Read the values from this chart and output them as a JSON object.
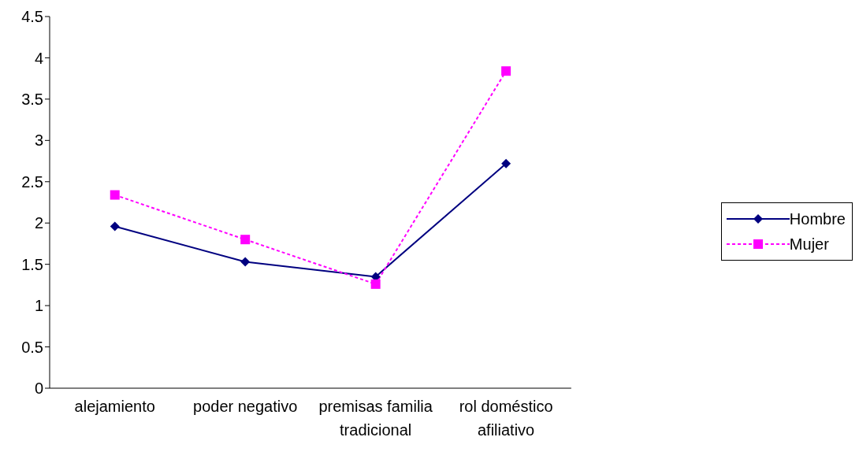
{
  "chart_data": {
    "type": "line",
    "categories": [
      "alejamiento",
      "poder negativo",
      "premisas familia tradicional",
      "rol doméstico afiliativo"
    ],
    "series": [
      {
        "name": "Hombre",
        "color": "#000080",
        "values": [
          1.96,
          1.53,
          1.35,
          2.72
        ],
        "marker": "diamond",
        "line_style": "solid"
      },
      {
        "name": "Mujer",
        "color": "#ff00ff",
        "values": [
          2.34,
          1.8,
          1.26,
          3.84
        ],
        "marker": "square",
        "line_style": "dashed"
      }
    ],
    "ylim": [
      0,
      4.5
    ],
    "yticks": [
      0,
      0.5,
      1,
      1.5,
      2,
      2.5,
      3,
      3.5,
      4,
      4.5
    ],
    "legend": "right"
  }
}
